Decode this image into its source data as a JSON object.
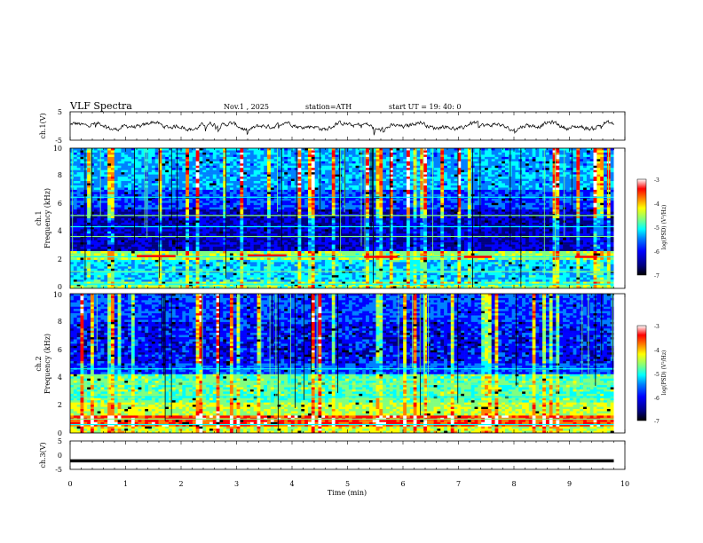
{
  "header": {
    "title": "VLF  Spectra",
    "date": "Nov.1  , 2025",
    "station": "station=ATH",
    "start_ut": "start  UT  =   19: 40: 0"
  },
  "chart_data": [
    {
      "type": "line",
      "panel": "ch1-waveform",
      "ylabel": "ch.1(V)",
      "ylim": [
        -5,
        5
      ],
      "yticks": [
        "5",
        "-5"
      ],
      "x_range_min": [
        0,
        10
      ],
      "data_extent_min": [
        0,
        9.8
      ],
      "description_values": {
        "typical_min": -2.5,
        "typical_max": 2.0
      }
    },
    {
      "type": "heatmap",
      "panel": "ch1-spectrogram",
      "ylabel": "ch.1\nFrequency  (kHz)",
      "ylabel_line1": "ch.1",
      "ylabel_line2": "Frequency  (kHz)",
      "ylim": [
        0,
        10
      ],
      "yticks": [
        "0",
        "2",
        "4",
        "6",
        "8",
        "10"
      ],
      "strong_bands_khz": [
        0.3,
        1.2,
        2.25,
        3.7,
        4.4,
        5.2,
        6.5
      ],
      "tone_segments": [
        [
          1.2,
          1.9,
          2.3
        ],
        [
          3.2,
          3.9,
          2.35
        ],
        [
          5.3,
          5.9,
          2.25
        ],
        [
          7.1,
          7.6,
          2.25
        ],
        [
          9.1,
          9.5,
          2.25
        ]
      ],
      "colorbar": {
        "label": "log(PSD) (V²/Hz)",
        "ticks": [
          "-3",
          "-4",
          "-5",
          "-6",
          "-7"
        ],
        "range": [
          -7,
          -3
        ]
      }
    },
    {
      "type": "heatmap",
      "panel": "ch2-spectrogram",
      "ylabel_line1": "ch.2",
      "ylabel_line2": "Frequency  (kHz)",
      "ylim": [
        0,
        10
      ],
      "yticks": [
        "0",
        "2",
        "4",
        "6",
        "8",
        "10"
      ],
      "strong_bands_khz": [
        0.6,
        1.0,
        2.6,
        3.5,
        4.6
      ],
      "colorbar": {
        "label": "log(PSD) (V²/Hz)",
        "ticks": [
          "-3",
          "-4",
          "-5",
          "-6",
          "-7"
        ],
        "range": [
          -7,
          -3
        ]
      }
    },
    {
      "type": "line",
      "panel": "ch3-waveform",
      "ylabel": "ch.3(V)",
      "ylim": [
        -5,
        5
      ],
      "yticks": [
        "5",
        "0",
        "-5"
      ],
      "constant_value": -2.0,
      "data_extent_min": [
        0,
        9.8
      ]
    }
  ],
  "x_axis": {
    "label": "Time  (min)",
    "range": [
      0,
      10
    ],
    "ticks": [
      "0",
      "1",
      "2",
      "3",
      "4",
      "5",
      "6",
      "7",
      "8",
      "9",
      "10"
    ]
  },
  "colors": {
    "background": "#ffffff",
    "trace": "#000000",
    "colormap": [
      "#000000",
      "#00007f",
      "#0000ff",
      "#0080ff",
      "#00ffff",
      "#80ff80",
      "#ffff00",
      "#ff8000",
      "#ff0000",
      "#ffffff"
    ]
  }
}
